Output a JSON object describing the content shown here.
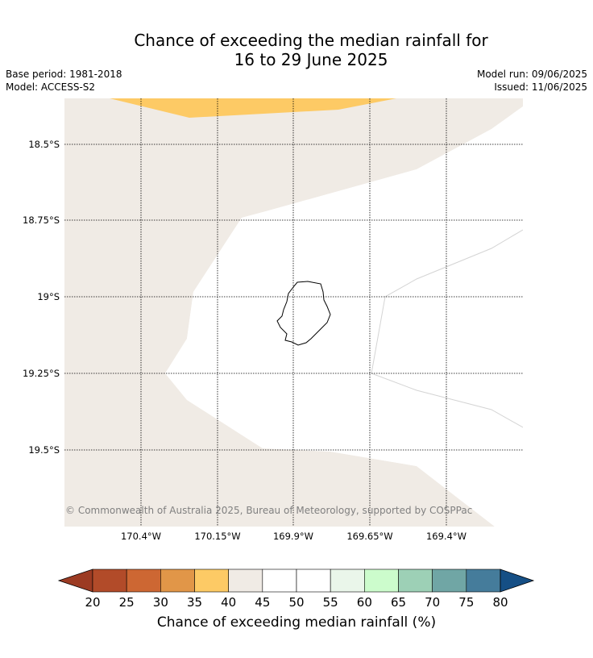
{
  "header": {
    "title_line1": "Chance of exceeding the median rainfall for",
    "title_line2": "16 to 29 June 2025",
    "base_period": "Base period: 1981-2018",
    "model": "Model: ACCESS-S2",
    "model_run": "Model run: 09/06/2025",
    "issued": "Issued: 11/06/2025"
  },
  "map": {
    "latitude_labels": [
      "18.5°S",
      "18.75°S",
      "19°S",
      "19.25°S",
      "19.5°S"
    ],
    "longitude_labels": [
      "170.4°W",
      "170.15°W",
      "169.9°W",
      "169.65°W",
      "169.4°W"
    ],
    "copyright": "© Commonwealth of Australia 2025, Bureau of Meteorology, supported by COSPPac",
    "region_colors": {
      "band_35_40": "#fdca65",
      "band_40_45": "#f0ebe5",
      "band_45_55": "#ffffff"
    }
  },
  "colorbar": {
    "label": "Chance of exceeding median rainfall (%)",
    "ticks": [
      "20",
      "25",
      "30",
      "35",
      "40",
      "45",
      "50",
      "55",
      "60",
      "65",
      "70",
      "75",
      "80"
    ],
    "under_color": "#9c3b23",
    "over_color": "#154f85",
    "colors": [
      "#b24b29",
      "#cd6733",
      "#e19648",
      "#fdca65",
      "#f0ebe5",
      "#ffffff",
      "#ffffff",
      "#eaf6ea",
      "#ccfccc",
      "#9dd0b6",
      "#70a6a5",
      "#457c9b"
    ]
  }
}
